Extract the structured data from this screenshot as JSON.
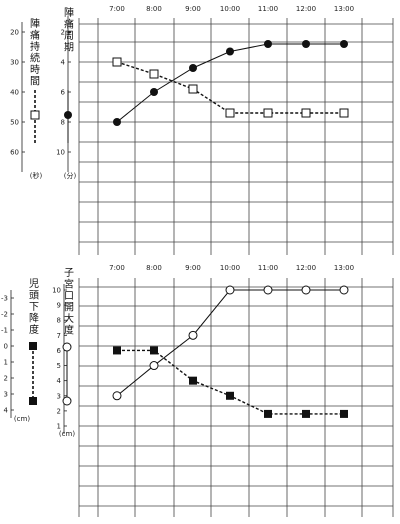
{
  "chart_data": [
    {
      "type": "line",
      "times": [
        "7:00",
        "8:00",
        "9:00",
        "10:00",
        "11:00",
        "12:00",
        "13:00"
      ],
      "left_axis": {
        "label": "陣痛持続時間",
        "unit": "(秒)",
        "ticks": [
          "20",
          "30",
          "40",
          "50",
          "60"
        ],
        "ylim": [
          20,
          60
        ],
        "legend_marker": "open-square-dashed"
      },
      "right_axis": {
        "label": "陣痛周期",
        "unit": "(分)",
        "ticks": [
          "2",
          "4",
          "6",
          "8",
          "10"
        ],
        "ylim": [
          2,
          10
        ],
        "legend_marker": "filled-circle-solid"
      },
      "series": [
        {
          "axis": "right",
          "marker": "filled-circle",
          "line": "solid",
          "values": [
            8,
            6,
            4.4,
            3.3,
            2.8,
            2.8,
            2.8
          ]
        },
        {
          "axis": "left",
          "marker": "open-square",
          "line": "dashed",
          "values": [
            30,
            34,
            39,
            47,
            47,
            47,
            47
          ]
        }
      ]
    },
    {
      "type": "line",
      "times": [
        "7:00",
        "8:00",
        "9:00",
        "10:00",
        "11:00",
        "12:00",
        "13:00"
      ],
      "left_axis": {
        "label": "児頭下降度",
        "unit": "(cm)",
        "ticks": [
          "-3",
          "-2",
          "-1",
          "0",
          "1",
          "2",
          "3",
          "4"
        ],
        "ylim": [
          -3,
          4
        ],
        "legend_marker": "filled-square-dashed"
      },
      "right_axis": {
        "label": "子宮口開大度",
        "unit": "(cm)",
        "ticks": [
          "10",
          "9",
          "8",
          "7",
          "6",
          "5",
          "4",
          "3",
          "2",
          "1"
        ],
        "ylim": [
          1,
          10
        ],
        "legend_marker": "open-circle-solid"
      },
      "series": [
        {
          "axis": "right",
          "marker": "open-circle",
          "line": "solid",
          "values": [
            3,
            5,
            7,
            10,
            10,
            10,
            10
          ]
        },
        {
          "axis": "right",
          "marker": "filled-square",
          "line": "dashed",
          "values": [
            6,
            6,
            4,
            3,
            1.8,
            1.8,
            1.8
          ]
        }
      ]
    }
  ]
}
